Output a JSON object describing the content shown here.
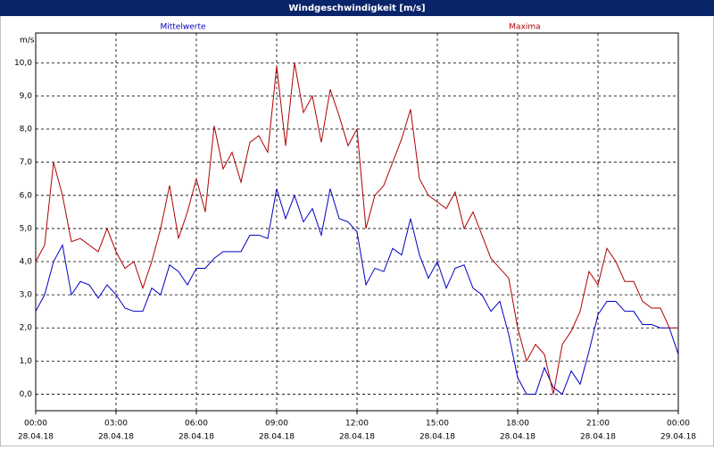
{
  "chart_data": {
    "type": "line",
    "title": "Windgeschwindigkeit [m/s]",
    "y_label": "m/s",
    "x": [
      0,
      20,
      40,
      60,
      80,
      100,
      120,
      140,
      160,
      180,
      200,
      220,
      240,
      260,
      280,
      300,
      320,
      340,
      360,
      380,
      400,
      420,
      440,
      460,
      480,
      500,
      520,
      540,
      560,
      580,
      600,
      620,
      640,
      660,
      680,
      700,
      720,
      740,
      760,
      780,
      800,
      820,
      840,
      860,
      880,
      900,
      920,
      940,
      960,
      980,
      1000,
      1020,
      1040,
      1060,
      1080,
      1100,
      1120,
      1140,
      1160,
      1180,
      1200,
      1220,
      1240,
      1260,
      1280,
      1300,
      1320,
      1340,
      1360,
      1380,
      1400,
      1420,
      1440
    ],
    "xlim": [
      0,
      1440
    ],
    "xticks": [
      {
        "value": 0,
        "label": "00:00",
        "date": "28.04.18"
      },
      {
        "value": 180,
        "label": "03:00",
        "date": "28.04.18"
      },
      {
        "value": 360,
        "label": "06:00",
        "date": "28.04.18"
      },
      {
        "value": 540,
        "label": "09:00",
        "date": "28.04.18"
      },
      {
        "value": 720,
        "label": "12:00",
        "date": "28.04.18"
      },
      {
        "value": 900,
        "label": "15:00",
        "date": "28.04.18"
      },
      {
        "value": 1080,
        "label": "18:00",
        "date": "28.04.18"
      },
      {
        "value": 1260,
        "label": "21:00",
        "date": "28.04.18"
      },
      {
        "value": 1440,
        "label": "00:00",
        "date": "29.04.18"
      }
    ],
    "ylim": [
      -0.5,
      10.9
    ],
    "yticks": [
      {
        "value": 0,
        "label": "0,0"
      },
      {
        "value": 1,
        "label": "1,0"
      },
      {
        "value": 2,
        "label": "2,0"
      },
      {
        "value": 3,
        "label": "3,0"
      },
      {
        "value": 4,
        "label": "4,0"
      },
      {
        "value": 5,
        "label": "5,0"
      },
      {
        "value": 6,
        "label": "6,0"
      },
      {
        "value": 7,
        "label": "7,0"
      },
      {
        "value": 8,
        "label": "8,0"
      },
      {
        "value": 9,
        "label": "9,0"
      },
      {
        "value": 10,
        "label": "10,0"
      }
    ],
    "grid": true,
    "series": [
      {
        "name": "Mittelwerte",
        "color": "#0000c0",
        "values": [
          2.5,
          3.0,
          4.0,
          4.5,
          3.0,
          3.4,
          3.3,
          2.9,
          3.3,
          3.0,
          2.6,
          2.5,
          2.5,
          3.2,
          3.0,
          3.9,
          3.7,
          3.3,
          3.8,
          3.8,
          4.1,
          4.3,
          4.3,
          4.3,
          4.8,
          4.8,
          4.7,
          6.2,
          5.3,
          6.0,
          5.2,
          5.6,
          4.8,
          6.2,
          5.3,
          5.2,
          4.9,
          3.3,
          3.8,
          3.7,
          4.4,
          4.2,
          5.3,
          4.2,
          3.5,
          4.0,
          3.2,
          3.8,
          3.9,
          3.2,
          3.0,
          2.5,
          2.8,
          1.8,
          0.5,
          0.0,
          0.0,
          0.8,
          0.2,
          0.0,
          0.7,
          0.3,
          1.3,
          2.4,
          2.8,
          2.8,
          2.5,
          2.5,
          2.1,
          2.1,
          2.0,
          2.0,
          1.2
        ]
      },
      {
        "name": "Maxima",
        "color": "#b00000",
        "values": [
          4.0,
          4.5,
          7.0,
          6.0,
          4.6,
          4.7,
          4.5,
          4.3,
          5.0,
          4.3,
          3.8,
          4.0,
          3.2,
          4.0,
          5.0,
          6.3,
          4.7,
          5.5,
          6.5,
          5.5,
          8.1,
          6.8,
          7.3,
          6.4,
          7.6,
          7.8,
          7.3,
          9.9,
          7.5,
          10.0,
          8.5,
          9.0,
          7.6,
          9.2,
          8.4,
          7.5,
          8.0,
          5.0,
          6.0,
          6.3,
          7.0,
          7.7,
          8.6,
          6.5,
          6.0,
          5.8,
          5.6,
          6.1,
          5.0,
          5.5,
          4.8,
          4.1,
          3.8,
          3.5,
          2.0,
          1.0,
          1.5,
          1.2,
          0.0,
          1.5,
          1.9,
          2.5,
          3.7,
          3.3,
          4.4,
          4.0,
          3.4,
          3.4,
          2.8,
          2.6,
          2.6,
          2.0,
          2.0
        ]
      }
    ]
  }
}
